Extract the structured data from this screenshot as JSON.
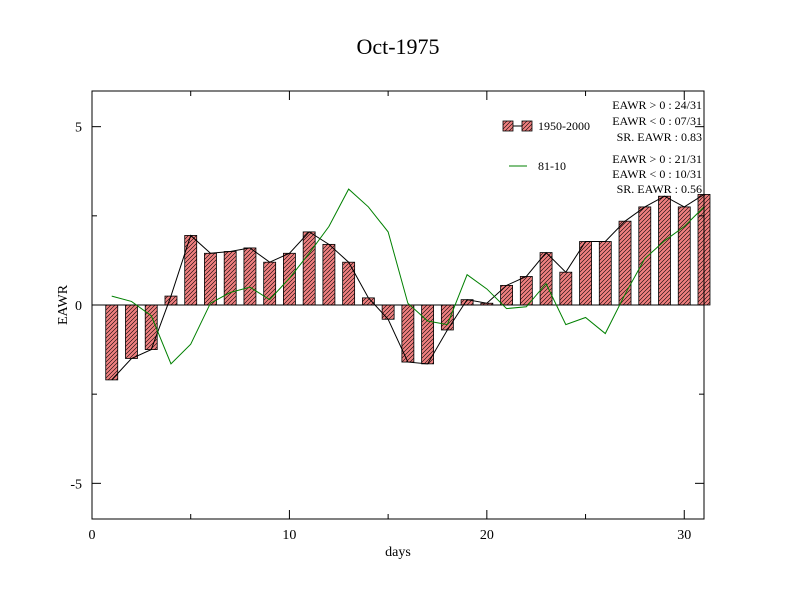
{
  "chart_data": {
    "type": "bar",
    "title": "Oct-1975",
    "xlabel": "days",
    "ylabel": "EAWR",
    "xlim": [
      0,
      31
    ],
    "ylim": [
      -6,
      6
    ],
    "xticks": [
      0,
      10,
      20,
      30
    ],
    "yticks": [
      -5,
      0,
      5
    ],
    "grid": false,
    "legend_position": "top-right",
    "x": [
      1,
      2,
      3,
      4,
      5,
      6,
      7,
      8,
      9,
      10,
      11,
      12,
      13,
      14,
      15,
      16,
      17,
      18,
      19,
      20,
      21,
      22,
      23,
      24,
      25,
      26,
      27,
      28,
      29,
      30,
      31
    ],
    "series": [
      {
        "name": "1950-2000",
        "kind": "bar",
        "values": [
          -2.1,
          -1.5,
          -1.25,
          0.25,
          1.95,
          1.45,
          1.5,
          1.6,
          1.2,
          1.45,
          2.05,
          1.7,
          1.2,
          0.2,
          -0.4,
          -1.6,
          -1.65,
          -0.7,
          0.15,
          0.05,
          0.55,
          0.8,
          1.47,
          0.92,
          1.78,
          1.78,
          2.35,
          2.75,
          3.05,
          2.75,
          3.1
        ]
      },
      {
        "name": "81-10",
        "kind": "line",
        "values": [
          0.25,
          0.1,
          -0.3,
          -1.65,
          -1.1,
          0.05,
          0.35,
          0.5,
          0.15,
          0.75,
          1.45,
          2.2,
          3.25,
          2.75,
          2.05,
          0.05,
          -0.45,
          -0.55,
          0.85,
          0.45,
          -0.1,
          -0.05,
          0.6,
          -0.55,
          -0.35,
          -0.8,
          0.3,
          1.3,
          1.8,
          2.2,
          2.75
        ]
      }
    ],
    "annotations": {
      "stats_1950_2000": [
        "EAWR > 0 : 24/31",
        "EAWR < 0 : 07/31",
        "SR. EAWR :  0.83"
      ],
      "stats_81_10": [
        "EAWR > 0 : 21/31",
        "EAWR < 0 : 10/31",
        "SR. EAWR :  0.56"
      ]
    },
    "colors": {
      "bar_fill": "#f08080",
      "bar_hatch": "#000000",
      "bar_outline_line": "#000000",
      "line_81_10": "#008000"
    }
  }
}
